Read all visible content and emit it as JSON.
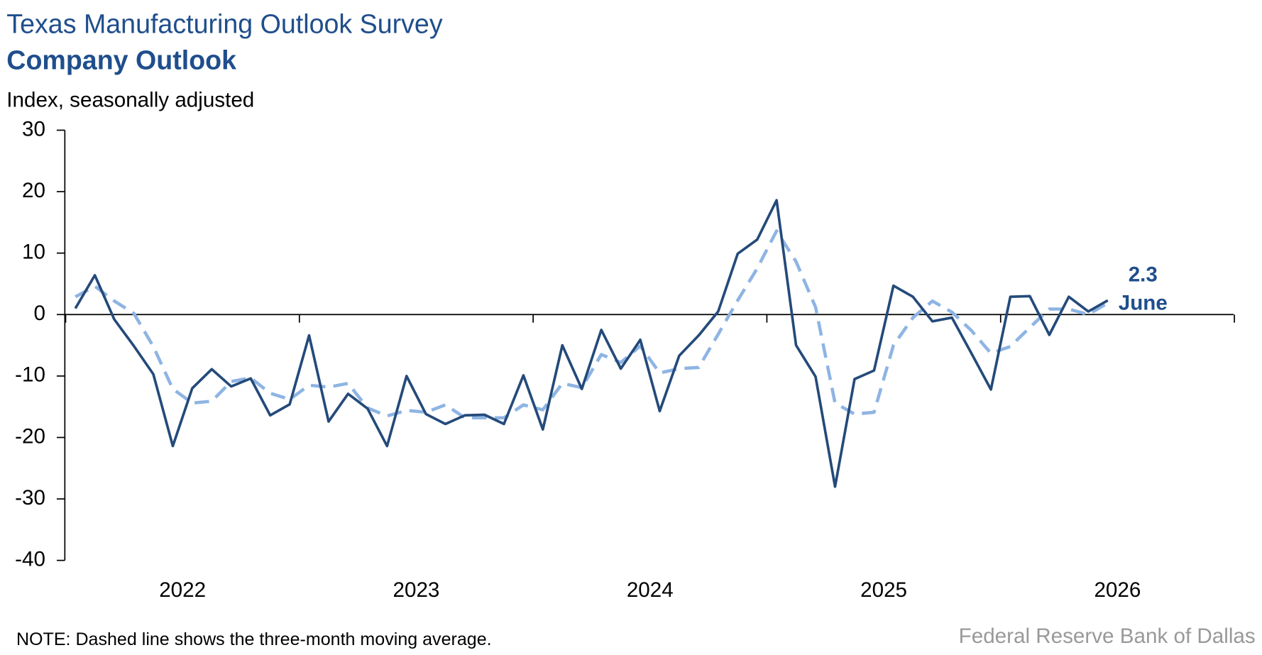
{
  "chart_data": {
    "type": "line",
    "title": "Texas Manufacturing Outlook Survey",
    "subtitle": "Company Outlook",
    "y_axis_label": "Index, seasonally adjusted",
    "note": "NOTE: Dashed line shows the three-month moving average.",
    "source": "Federal Reserve Bank of Dallas",
    "annotation": "June",
    "categories": [
      "2022",
      null,
      null,
      null,
      null,
      null,
      null,
      null,
      null,
      null,
      null,
      null,
      "2023",
      null,
      null,
      null,
      null,
      null,
      null,
      null,
      null,
      null,
      null,
      null,
      "2024",
      null,
      null,
      null,
      null,
      null,
      null,
      null,
      null,
      null,
      null,
      null,
      "2025",
      null,
      null,
      null,
      null,
      null,
      null,
      null,
      null,
      null,
      null,
      null,
      "2026",
      null,
      null,
      null,
      null,
      null
    ],
    "series": [
      {
        "name": "Company outlook",
        "color": "#244a7a",
        "dashed": false,
        "values": [
          1.0,
          6.4,
          -0.8,
          -5.1,
          -9.7,
          -21.4,
          -12.0,
          -8.9,
          -11.7,
          -10.4,
          -16.4,
          -14.6,
          -3.4,
          -17.4,
          -12.9,
          -15.3,
          -21.4,
          -10.0,
          -16.2,
          -17.8,
          -16.4,
          -16.3,
          -17.8,
          -9.9,
          -18.7,
          -5.0,
          -12.1,
          -2.5,
          -8.8,
          -4.1,
          -15.7,
          -6.7,
          -3.4,
          0.5,
          9.9,
          12.2,
          18.6,
          -5.0,
          -10.1,
          -28.0,
          -10.5,
          -9.1,
          4.7,
          2.9,
          -1.1,
          -0.5,
          -6.3,
          -12.2,
          2.9,
          3.0,
          -3.3,
          2.9,
          0.5,
          2.3
        ]
      },
      {
        "name": "Three-month moving average",
        "color": "#8eb4e3",
        "dashed": true,
        "values": [
          2.9,
          4.6,
          2.2,
          0.2,
          -5.2,
          -12.1,
          -14.4,
          -14.1,
          -10.9,
          -10.3,
          -12.8,
          -13.8,
          -11.5,
          -11.8,
          -11.2,
          -15.2,
          -16.5,
          -15.6,
          -15.9,
          -14.7,
          -16.8,
          -16.8,
          -16.8,
          -14.7,
          -15.5,
          -11.2,
          -11.9,
          -6.5,
          -7.8,
          -5.1,
          -9.5,
          -8.8,
          -8.6,
          -3.2,
          2.3,
          7.5,
          13.6,
          8.6,
          1.2,
          -14.4,
          -16.2,
          -15.9,
          -5.0,
          -0.5,
          2.2,
          0.4,
          -2.6,
          -6.3,
          -5.2,
          -2.1,
          0.9,
          0.9,
          0.0,
          1.9
        ]
      }
    ],
    "ylim": [
      -40,
      30
    ],
    "yticks": [
      -40,
      -30,
      -20,
      -10,
      0,
      10,
      20,
      30
    ],
    "grid": false
  }
}
